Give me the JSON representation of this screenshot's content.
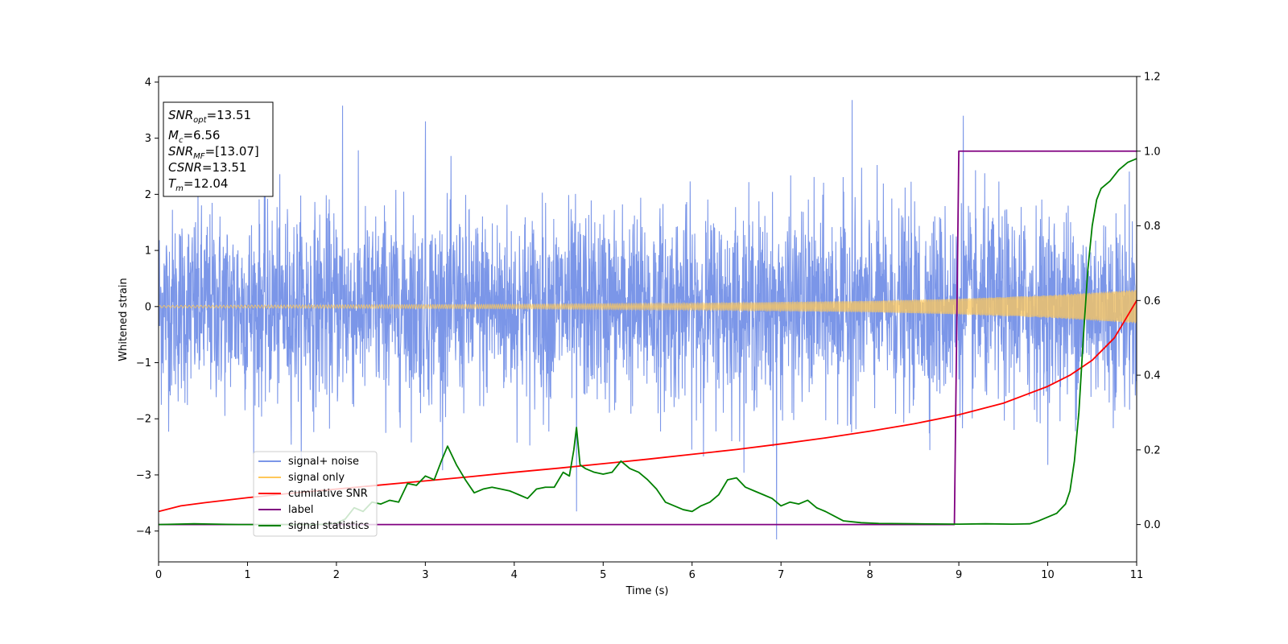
{
  "chart_data": {
    "type": "line",
    "xlabel": "Time (s)",
    "ylabel": "Whitened strain",
    "xlim": [
      0,
      11
    ],
    "ylim": [
      -4.55,
      4.1
    ],
    "y2lim": [
      -0.1,
      1.2
    ],
    "grid": false,
    "legend_position": "lower-left",
    "x_ticks": [
      "0",
      "1",
      "2",
      "3",
      "4",
      "5",
      "6",
      "7",
      "8",
      "9",
      "10",
      "11"
    ],
    "y_ticks": [
      "−4",
      "−3",
      "−2",
      "−1",
      "0",
      "1",
      "2",
      "3",
      "4"
    ],
    "y2_ticks": [
      "0.0",
      "0.2",
      "0.4",
      "0.6",
      "0.8",
      "1.0",
      "1.2"
    ],
    "annotation": {
      "snr_opt": {
        "label": "SNR",
        "sub": "opt",
        "value": "=13.51"
      },
      "mc": {
        "label": "M",
        "sub": "c",
        "value": "=6.56"
      },
      "snr_mf": {
        "label": "SNR",
        "sub": "MF",
        "value": "=[13.07]"
      },
      "csnr": {
        "label": "CSNR",
        "value": "=13.51"
      },
      "tm": {
        "label": "T",
        "sub": "m",
        "value": "=12.04"
      }
    },
    "series": [
      {
        "name": "signal+ noise",
        "color": "#7b96e8",
        "axis": "left",
        "description_values": {
          "typical_envelope": [
            -2.2,
            2.2
          ],
          "spike_times": [
            2.07,
            3.0,
            4.7,
            7.8,
            9.05,
            6.95
          ],
          "spike_values": [
            3.58,
            3.3,
            -3.65,
            3.68,
            3.4,
            -4.15
          ]
        }
      },
      {
        "name": "signal only",
        "color": "#ffc85a",
        "axis": "left",
        "envelope_x": [
          0,
          2,
          4,
          6,
          8,
          9,
          10,
          11
        ],
        "envelope_y": [
          0.02,
          0.03,
          0.04,
          0.06,
          0.1,
          0.14,
          0.2,
          0.3
        ]
      },
      {
        "name": "cumilative SNR",
        "color": "#ff0000",
        "axis": "right",
        "x": [
          0,
          0.25,
          0.5,
          1,
          1.5,
          2,
          2.5,
          3,
          3.5,
          4,
          4.5,
          5,
          5.5,
          6,
          6.5,
          7,
          7.5,
          8,
          8.5,
          9,
          9.5,
          10,
          10.25,
          10.5,
          10.75,
          11
        ],
        "y": [
          0.035,
          0.05,
          0.058,
          0.072,
          0.084,
          0.095,
          0.106,
          0.117,
          0.128,
          0.14,
          0.151,
          0.163,
          0.175,
          0.188,
          0.201,
          0.216,
          0.232,
          0.25,
          0.27,
          0.294,
          0.325,
          0.37,
          0.4,
          0.44,
          0.5,
          0.6
        ]
      },
      {
        "name": "label",
        "color": "#800080",
        "axis": "right",
        "x": [
          0,
          8.95,
          9.0,
          11
        ],
        "y": [
          0.0,
          0.0,
          1.0,
          1.0
        ]
      },
      {
        "name": "signal statistics",
        "color": "#008000",
        "axis": "right",
        "x": [
          0,
          0.4,
          0.9,
          1.5,
          1.8,
          2.0,
          2.1,
          2.2,
          2.3,
          2.4,
          2.5,
          2.6,
          2.7,
          2.8,
          2.9,
          3.0,
          3.1,
          3.18,
          3.25,
          3.35,
          3.45,
          3.55,
          3.65,
          3.75,
          3.85,
          3.95,
          4.05,
          4.15,
          4.25,
          4.35,
          4.45,
          4.55,
          4.62,
          4.67,
          4.7,
          4.74,
          4.8,
          4.9,
          5.0,
          5.1,
          5.2,
          5.3,
          5.4,
          5.5,
          5.6,
          5.7,
          5.8,
          5.9,
          6.0,
          6.1,
          6.2,
          6.3,
          6.4,
          6.5,
          6.6,
          6.7,
          6.8,
          6.9,
          7.0,
          7.1,
          7.2,
          7.3,
          7.4,
          7.5,
          7.7,
          7.9,
          8.1,
          8.5,
          9.0,
          9.3,
          9.6,
          9.8,
          9.9,
          10.0,
          10.1,
          10.2,
          10.25,
          10.3,
          10.35,
          10.4,
          10.45,
          10.5,
          10.55,
          10.6,
          10.7,
          10.8,
          10.9,
          11.0
        ],
        "y": [
          0.0,
          0.002,
          0.0,
          0.0,
          0.0,
          0.003,
          0.015,
          0.045,
          0.035,
          0.06,
          0.055,
          0.065,
          0.06,
          0.11,
          0.105,
          0.13,
          0.12,
          0.17,
          0.21,
          0.16,
          0.12,
          0.085,
          0.095,
          0.1,
          0.095,
          0.09,
          0.08,
          0.07,
          0.095,
          0.1,
          0.1,
          0.14,
          0.13,
          0.2,
          0.26,
          0.16,
          0.15,
          0.14,
          0.135,
          0.14,
          0.17,
          0.15,
          0.14,
          0.12,
          0.095,
          0.06,
          0.05,
          0.04,
          0.035,
          0.05,
          0.06,
          0.08,
          0.12,
          0.125,
          0.1,
          0.09,
          0.08,
          0.07,
          0.05,
          0.06,
          0.055,
          0.065,
          0.045,
          0.035,
          0.01,
          0.005,
          0.003,
          0.002,
          0.001,
          0.002,
          0.001,
          0.002,
          0.01,
          0.02,
          0.03,
          0.055,
          0.09,
          0.17,
          0.3,
          0.5,
          0.68,
          0.8,
          0.87,
          0.9,
          0.92,
          0.95,
          0.97,
          0.98
        ]
      }
    ]
  }
}
